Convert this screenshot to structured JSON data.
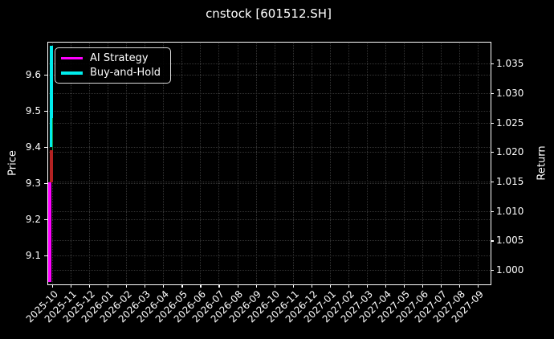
{
  "title": "cnstock [601512.SH]",
  "legend": {
    "items": [
      {
        "label": "AI Strategy",
        "color": "#ff00ff"
      },
      {
        "label": "Buy-and-Hold",
        "color": "#00eded"
      }
    ]
  },
  "axes": {
    "left": {
      "label": "Price",
      "tick_labels": [
        "9.6",
        "9.5",
        "9.4",
        "9.3",
        "9.2",
        "9.1"
      ],
      "tick_values": [
        9.6,
        9.5,
        9.4,
        9.3,
        9.2,
        9.1
      ],
      "range": [
        9.022,
        9.691
      ]
    },
    "right": {
      "label": "Return",
      "tick_labels": [
        "1.035",
        "1.030",
        "1.025",
        "1.020",
        "1.015",
        "1.010",
        "1.005",
        "1.000"
      ],
      "tick_values": [
        1.035,
        1.03,
        1.025,
        1.02,
        1.015,
        1.01,
        1.005,
        1.0
      ],
      "range": [
        0.9977,
        1.0387
      ]
    },
    "x": {
      "tick_labels": [
        "2025-10",
        "2025-11",
        "2025-12",
        "2026-01",
        "2026-02",
        "2026-03",
        "2026-04",
        "2026-05",
        "2026-06",
        "2026-07",
        "2026-08",
        "2026-09",
        "2026-10",
        "2026-11",
        "2026-12",
        "2027-01",
        "2027-02",
        "2027-03",
        "2027-04",
        "2027-05",
        "2027-06",
        "2027-07",
        "2027-08",
        "2027-09"
      ]
    }
  },
  "chart_data": {
    "type": "line",
    "title": "cnstock [601512.SH]",
    "x_tick_labels": [
      "2025-10",
      "2025-11",
      "2025-12",
      "2026-01",
      "2026-02",
      "2026-03",
      "2026-04",
      "2026-05",
      "2026-06",
      "2026-07",
      "2026-08",
      "2026-09",
      "2026-10",
      "2026-11",
      "2026-12",
      "2027-01",
      "2027-02",
      "2027-03",
      "2027-04",
      "2027-05",
      "2027-06",
      "2027-07",
      "2027-08",
      "2027-09"
    ],
    "left_axis": {
      "label": "Price",
      "ticks": [
        9.1,
        9.2,
        9.3,
        9.4,
        9.5,
        9.6
      ],
      "range": [
        9.02,
        9.69
      ]
    },
    "right_axis": {
      "label": "Return",
      "ticks": [
        1.0,
        1.005,
        1.01,
        1.015,
        1.02,
        1.025,
        1.03,
        1.035
      ],
      "range": [
        0.998,
        1.039
      ]
    },
    "grid": "dotted gridlines from both y-axes and monthly x-ticks",
    "legend_position": "upper left",
    "background": "#000000",
    "note": "All series span only the first days of 2025-10, so they render as vertical segments hugging the left spine.",
    "series": [
      {
        "name": "AI Strategy",
        "axis": "right",
        "color": "#ff00ff",
        "x": "2025-10",
        "value_span": [
          0.998,
          1.0148
        ]
      },
      {
        "name": "Buy-and-Hold",
        "axis": "right",
        "color": "#00eded",
        "x": "2025-10",
        "value_span": [
          1.0208,
          1.038
        ]
      },
      {
        "name": "price-rising",
        "axis": "left",
        "color": "#0f8f3f",
        "x": "2025-10",
        "value_span": [
          9.39,
          9.48
        ]
      },
      {
        "name": "price-falling",
        "axis": "left",
        "color": "#b42222",
        "x": "2025-10",
        "value_span": [
          9.302,
          9.39
        ]
      }
    ],
    "colors": {
      "background": "#000000",
      "text": "#ffffff",
      "grid": "#343434",
      "spine": "#ffffff"
    }
  }
}
